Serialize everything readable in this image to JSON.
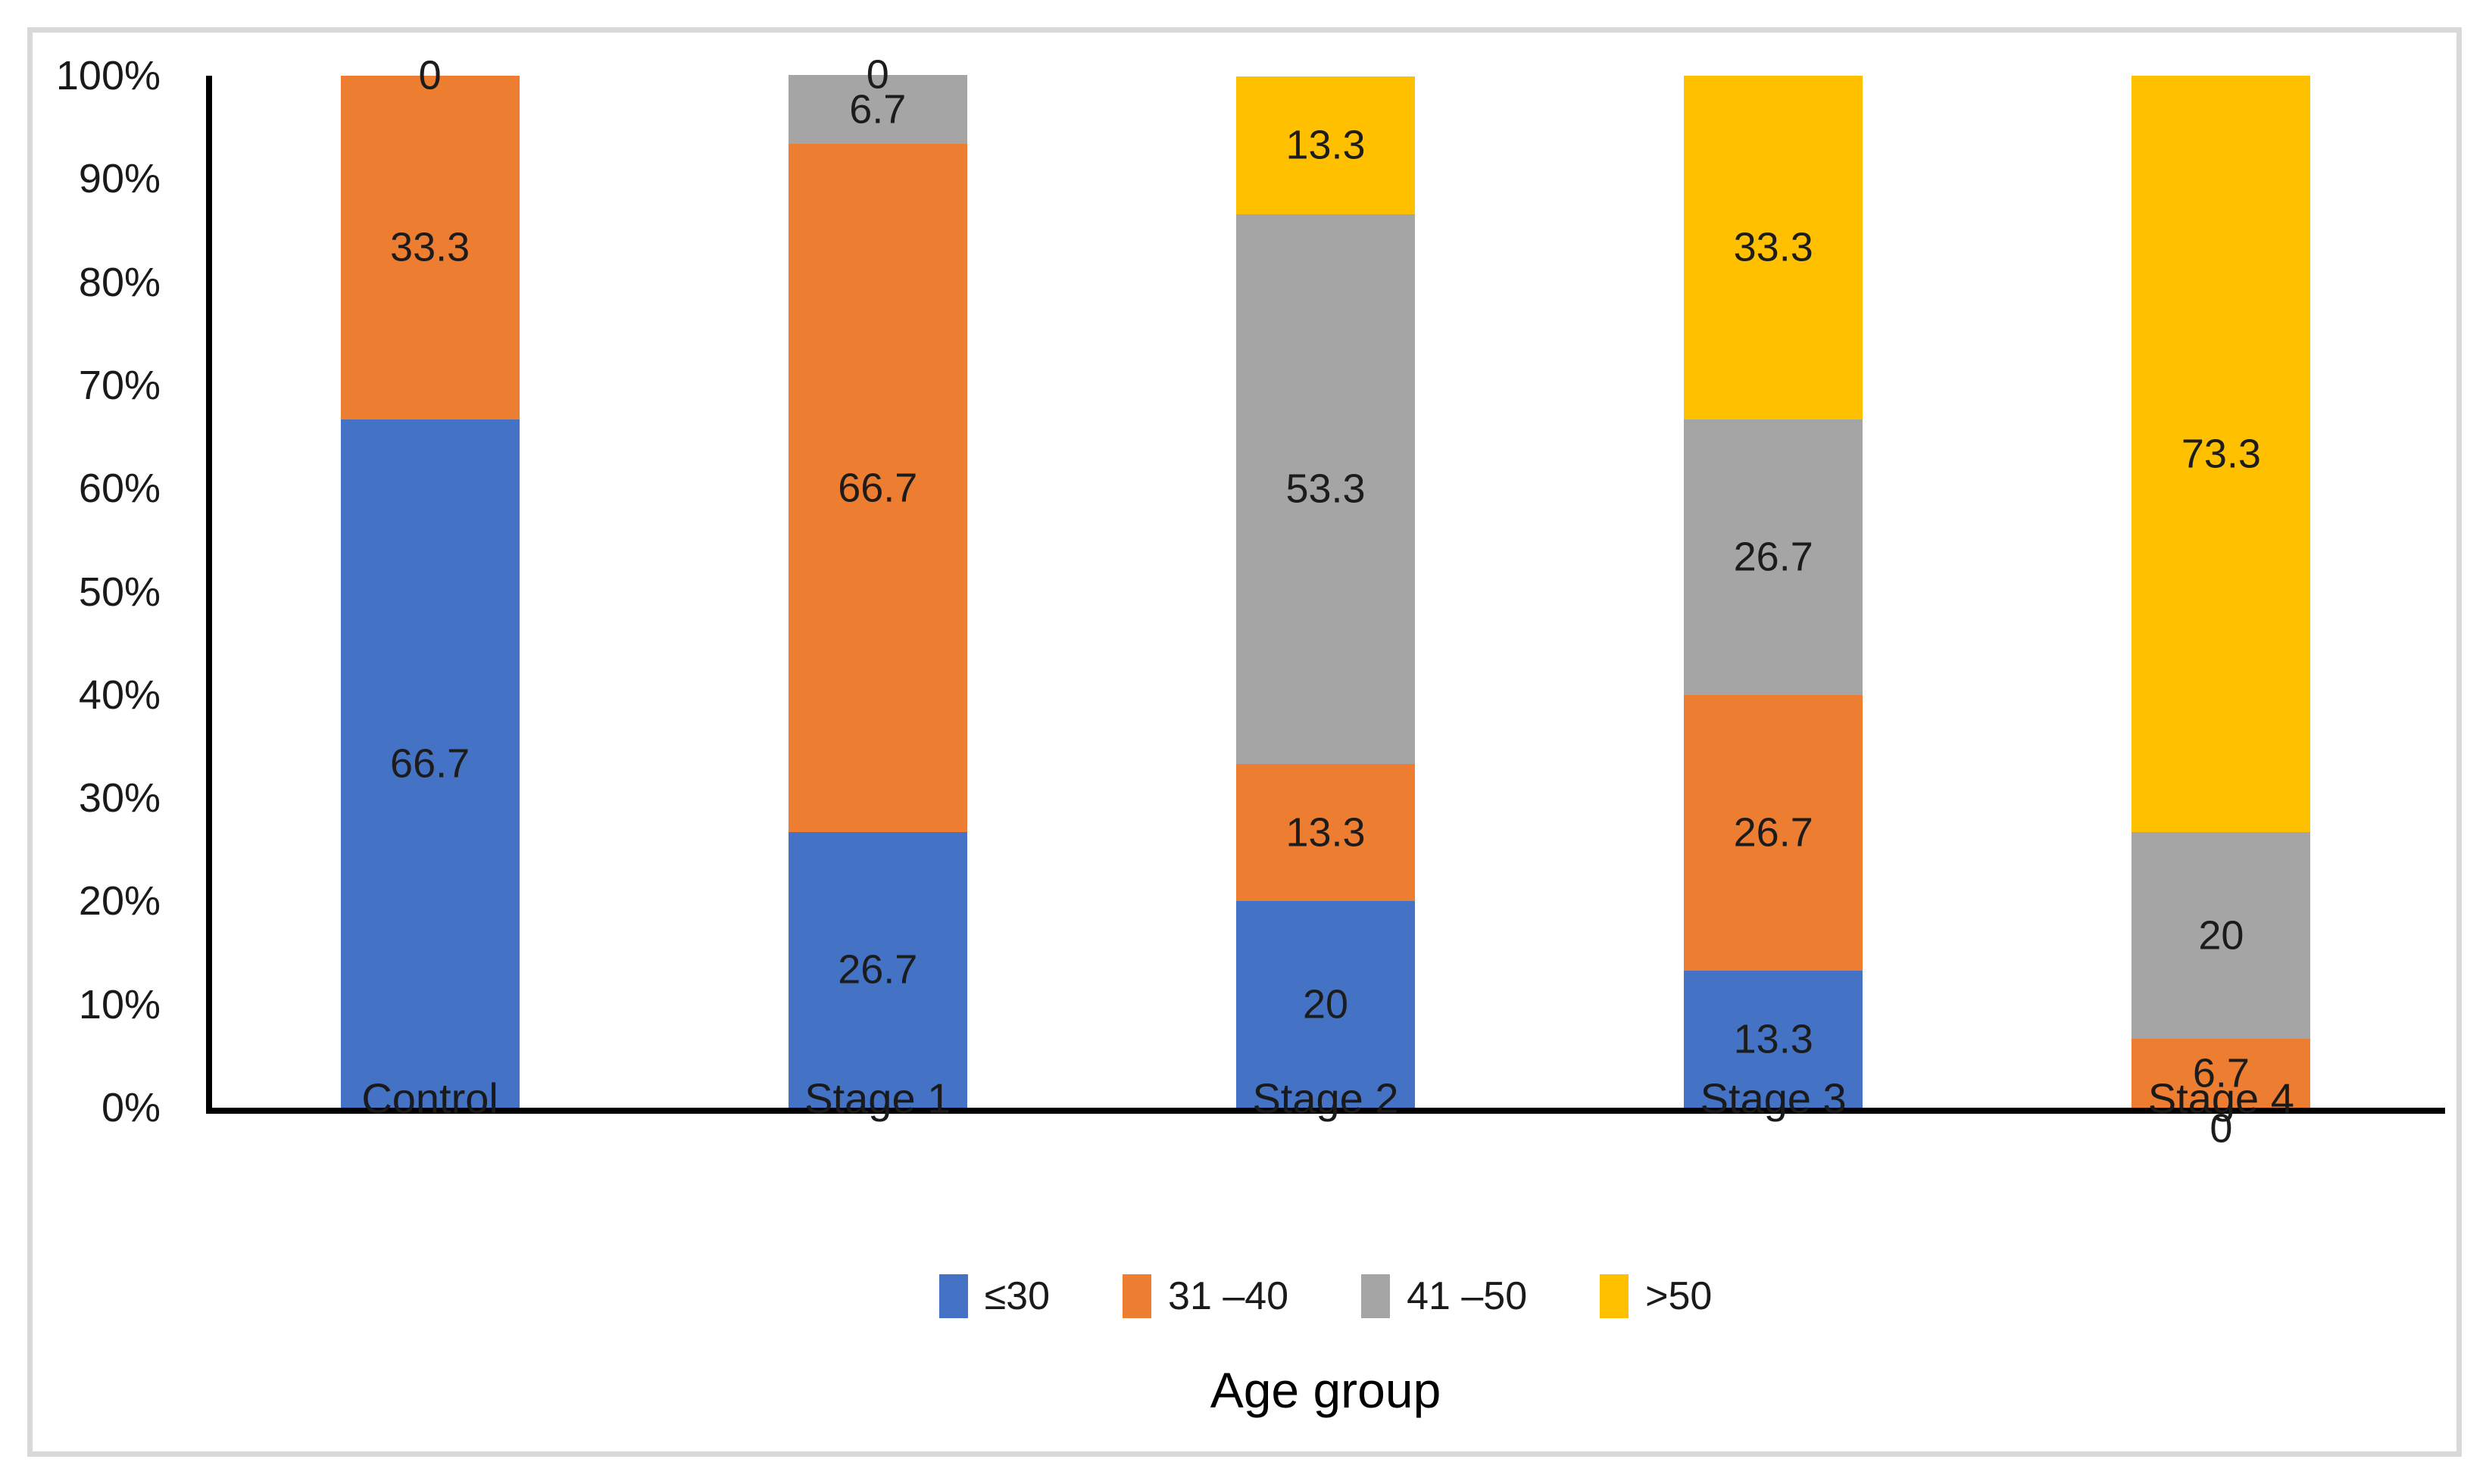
{
  "figure": {
    "background": "#ffffff",
    "frame_color": "#d9d9d9",
    "axis_line_color": "#000000",
    "label_text_color": "#1c1c1c"
  },
  "chart_data": {
    "type": "bar",
    "stacked": true,
    "percent_stacked": true,
    "title": "",
    "xlabel": "Age group",
    "ylabel": "",
    "ylim": [
      0,
      100
    ],
    "ytick_step": 10,
    "ytick_labels": [
      "0%",
      "10%",
      "20%",
      "30%",
      "40%",
      "50%",
      "60%",
      "70%",
      "80%",
      "90%",
      "100%"
    ],
    "grid": false,
    "data_labels": true,
    "legend_position": "bottom",
    "categories": [
      "Control",
      "Stage 1",
      "Stage 2",
      "Stage 3",
      "Stage 4"
    ],
    "series": [
      {
        "name": "≤30",
        "color": "#4472C4",
        "values": [
          66.7,
          26.7,
          20,
          13.3,
          0
        ]
      },
      {
        "name": "31 –40",
        "color": "#ED7D31",
        "values": [
          33.3,
          66.7,
          13.3,
          26.7,
          6.7
        ]
      },
      {
        "name": "41 –50",
        "color": "#A5A5A5",
        "values": [
          0,
          6.7,
          53.3,
          26.7,
          20
        ]
      },
      {
        "name": ">50",
        "color": "#FFC000",
        "values": [
          0,
          0,
          13.3,
          33.3,
          73.3
        ]
      }
    ]
  }
}
